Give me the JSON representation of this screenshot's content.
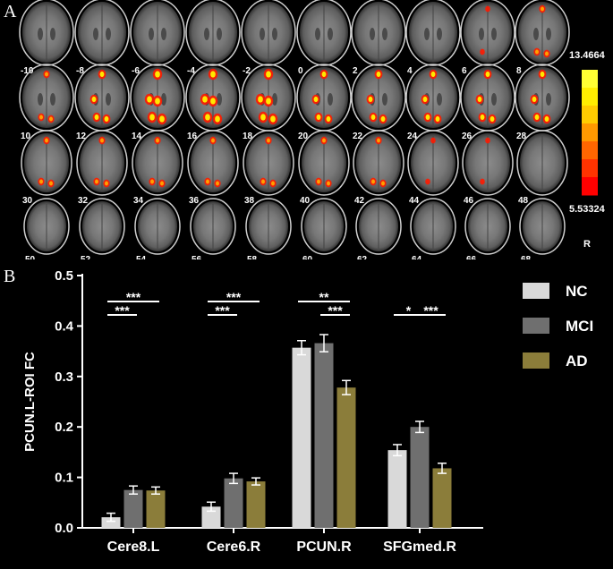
{
  "panel_a": {
    "letter": "A",
    "slice_labels": [
      "-10",
      "-8",
      "-6",
      "-4",
      "-2",
      "0",
      "2",
      "4",
      "6",
      "8",
      "10",
      "12",
      "14",
      "16",
      "18",
      "20",
      "22",
      "24",
      "26",
      "28",
      "30",
      "32",
      "34",
      "36",
      "38",
      "40",
      "42",
      "44",
      "46",
      "48",
      "50",
      "52",
      "54",
      "56",
      "58",
      "60",
      "62",
      "64",
      "66",
      "68"
    ],
    "colorbar": {
      "max_label": "13.4664",
      "min_label": "5.53324",
      "colors": [
        "#ff0000",
        "#ff3300",
        "#ff6600",
        "#ff9900",
        "#ffcc00",
        "#ffee00",
        "#ffff33"
      ]
    },
    "orientation_label": "R",
    "activation_strength": [
      0,
      0,
      0,
      0,
      0,
      0,
      0,
      0,
      1,
      2,
      2,
      3,
      4,
      4,
      4,
      3,
      3,
      3,
      3,
      3,
      2,
      2,
      2,
      2,
      2,
      2,
      2,
      1,
      1,
      0,
      0,
      0,
      0,
      0,
      0,
      0,
      0,
      0,
      0,
      0
    ]
  },
  "panel_b": {
    "letter": "B"
  },
  "chart_data": {
    "type": "bar",
    "categories": [
      "Cere8.L",
      "Cere6.R",
      "PCUN.R",
      "SFGmed.R"
    ],
    "series": [
      {
        "name": "NC",
        "color": "#d9d9d9",
        "values": [
          0.021,
          0.042,
          0.357,
          0.154
        ],
        "errors": [
          0.008,
          0.009,
          0.014,
          0.011
        ]
      },
      {
        "name": "MCI",
        "color": "#6f6f6f",
        "values": [
          0.075,
          0.098,
          0.366,
          0.2
        ],
        "errors": [
          0.008,
          0.01,
          0.017,
          0.011
        ]
      },
      {
        "name": "AD",
        "color": "#8b7d3a",
        "values": [
          0.074,
          0.092,
          0.278,
          0.118
        ],
        "errors": [
          0.007,
          0.007,
          0.014,
          0.01
        ]
      }
    ],
    "xlabel": "",
    "ylabel": "PCUN.L-ROI FC",
    "ylim": [
      0,
      0.5
    ],
    "yticks": [
      "0.0",
      "0.1",
      "0.2",
      "0.3",
      "0.4",
      "0.5"
    ],
    "legend_position": "right",
    "significance": [
      {
        "category": 0,
        "from": 0,
        "to": 2,
        "level": 2,
        "label": "***"
      },
      {
        "category": 0,
        "from": 0,
        "to": 1,
        "level": 1,
        "label": "***"
      },
      {
        "category": 1,
        "from": 0,
        "to": 2,
        "level": 2,
        "label": "***"
      },
      {
        "category": 1,
        "from": 0,
        "to": 1,
        "level": 1,
        "label": "***"
      },
      {
        "category": 2,
        "from": 0,
        "to": 2,
        "level": 2,
        "label": "**"
      },
      {
        "category": 2,
        "from": 1,
        "to": 2,
        "level": 1,
        "label": "***"
      },
      {
        "category": 3,
        "from": 0,
        "to": 1,
        "level": 1,
        "label": "*"
      },
      {
        "category": 3,
        "from": 1,
        "to": 2,
        "level": 1,
        "label": "***"
      }
    ]
  }
}
